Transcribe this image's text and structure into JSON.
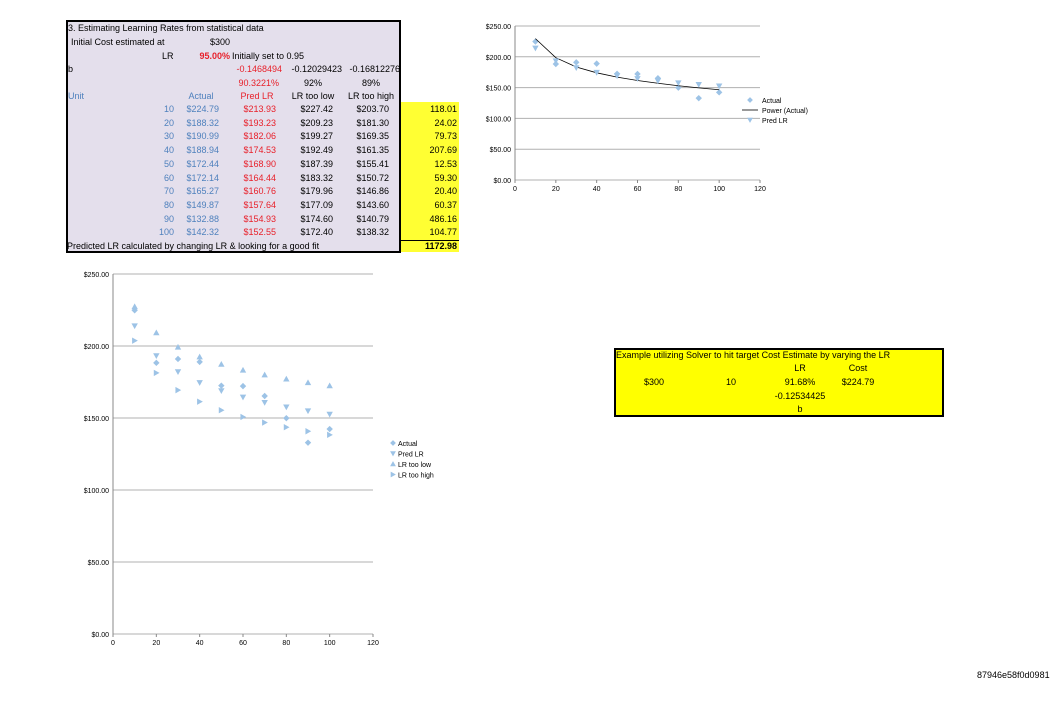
{
  "sheet": {
    "title": "3.    Estimating Learning Rates from statistical data",
    "initial_cost_label": "Initial Cost estimated at",
    "initial_cost_value": "$300",
    "lr_label": "LR",
    "lr_value": "95.00%",
    "lr_note": "Initially set to 0.95",
    "b_label": "b",
    "b_values": [
      "-0.1468494",
      "-0.12029423",
      "-0.16812276"
    ],
    "lr_pcts": [
      "90.3221%",
      "92%",
      "89%"
    ],
    "headers": {
      "unit": "Unit",
      "actual": "Actual",
      "pred": "Pred LR",
      "low": "LR too low",
      "high": "LR too high"
    },
    "rows": [
      {
        "unit": "10",
        "actual": "$224.79",
        "pred": "$213.93",
        "low": "$227.42",
        "high": "$203.70",
        "err": "118.01"
      },
      {
        "unit": "20",
        "actual": "$188.32",
        "pred": "$193.23",
        "low": "$209.23",
        "high": "$181.30",
        "err": "24.02"
      },
      {
        "unit": "30",
        "actual": "$190.99",
        "pred": "$182.06",
        "low": "$199.27",
        "high": "$169.35",
        "err": "79.73"
      },
      {
        "unit": "40",
        "actual": "$188.94",
        "pred": "$174.53",
        "low": "$192.49",
        "high": "$161.35",
        "err": "207.69"
      },
      {
        "unit": "50",
        "actual": "$172.44",
        "pred": "$168.90",
        "low": "$187.39",
        "high": "$155.41",
        "err": "12.53"
      },
      {
        "unit": "60",
        "actual": "$172.14",
        "pred": "$164.44",
        "low": "$183.32",
        "high": "$150.72",
        "err": "59.30"
      },
      {
        "unit": "70",
        "actual": "$165.27",
        "pred": "$160.76",
        "low": "$179.96",
        "high": "$146.86",
        "err": "20.40"
      },
      {
        "unit": "80",
        "actual": "$149.87",
        "pred": "$157.64",
        "low": "$177.09",
        "high": "$143.60",
        "err": "60.37"
      },
      {
        "unit": "90",
        "actual": "$132.88",
        "pred": "$154.93",
        "low": "$174.60",
        "high": "$140.79",
        "err": "486.16"
      },
      {
        "unit": "100",
        "actual": "$142.32",
        "pred": "$152.55",
        "low": "$172.40",
        "high": "$138.32",
        "err": "104.77"
      }
    ],
    "footer_note": "Predicted LR calculated by changing LR & looking for a good fit",
    "sum_error": "1172.98"
  },
  "solver_box": {
    "title": "Example utilizing Solver to hit target Cost Estimate by varying the LR",
    "lr_header": "LR",
    "cost_header": "Cost",
    "initial": "$300",
    "unit": "10",
    "lr_value": "91.68%",
    "cost_value": "$224.79",
    "b_value": "-0.12534425",
    "b_label": "b"
  },
  "footer_id": "87946e58f0d0981",
  "colors": {
    "sheet_bg": "#e4dfec",
    "highlight": "#ffff00",
    "marker": "#9dc3e6",
    "red": "#e8202a",
    "blue": "#4f81bd"
  },
  "chart_data": [
    {
      "type": "scatter",
      "title": "",
      "xlabel": "",
      "ylabel": "",
      "xlim": [
        0,
        120
      ],
      "ylim": [
        0,
        250
      ],
      "xticks": [
        "0",
        "20",
        "40",
        "60",
        "80",
        "100",
        "120"
      ],
      "yticks": [
        "$0.00",
        "$50.00",
        "$100.00",
        "$150.00",
        "$200.00",
        "$250.00"
      ],
      "legend": [
        "Actual",
        "Power (Actual)",
        "Pred LR"
      ],
      "legend_position": "right",
      "grid": true,
      "x": [
        10,
        20,
        30,
        40,
        50,
        60,
        70,
        80,
        90,
        100
      ],
      "series": [
        {
          "name": "Actual",
          "marker": "diamond",
          "values": [
            224.79,
            188.32,
            190.99,
            188.94,
            172.44,
            172.14,
            165.27,
            149.87,
            132.88,
            142.32
          ]
        },
        {
          "name": "Power (Actual)",
          "marker": "line",
          "values": [
            229.5,
            198.5,
            183.5,
            174.0,
            167.0,
            161.5,
            157.0,
            153.0,
            149.5,
            146.5
          ]
        },
        {
          "name": "Pred LR",
          "marker": "triangle-down",
          "values": [
            213.93,
            193.23,
            182.06,
            174.53,
            168.9,
            164.44,
            160.76,
            157.64,
            154.93,
            152.55
          ]
        }
      ]
    },
    {
      "type": "scatter",
      "title": "",
      "xlabel": "",
      "ylabel": "",
      "xlim": [
        0,
        120
      ],
      "ylim": [
        0,
        250
      ],
      "xticks": [
        "0",
        "20",
        "40",
        "60",
        "80",
        "100",
        "120"
      ],
      "yticks": [
        "$0.00",
        "$50.00",
        "$100.00",
        "$150.00",
        "$200.00",
        "$250.00"
      ],
      "legend": [
        "Actual",
        "Pred LR",
        "LR too low",
        "LR too high"
      ],
      "legend_position": "right",
      "grid": true,
      "x": [
        10,
        20,
        30,
        40,
        50,
        60,
        70,
        80,
        90,
        100
      ],
      "series": [
        {
          "name": "Actual",
          "marker": "diamond",
          "values": [
            224.79,
            188.32,
            190.99,
            188.94,
            172.44,
            172.14,
            165.27,
            149.87,
            132.88,
            142.32
          ]
        },
        {
          "name": "Pred LR",
          "marker": "triangle-down",
          "values": [
            213.93,
            193.23,
            182.06,
            174.53,
            168.9,
            164.44,
            160.76,
            157.64,
            154.93,
            152.55
          ]
        },
        {
          "name": "LR too low",
          "marker": "triangle-up",
          "values": [
            227.42,
            209.23,
            199.27,
            192.49,
            187.39,
            183.32,
            179.96,
            177.09,
            174.6,
            172.4
          ]
        },
        {
          "name": "LR too high",
          "marker": "triangle-right",
          "values": [
            203.7,
            181.3,
            169.35,
            161.35,
            155.41,
            150.72,
            146.86,
            143.6,
            140.79,
            138.32
          ]
        }
      ]
    }
  ]
}
